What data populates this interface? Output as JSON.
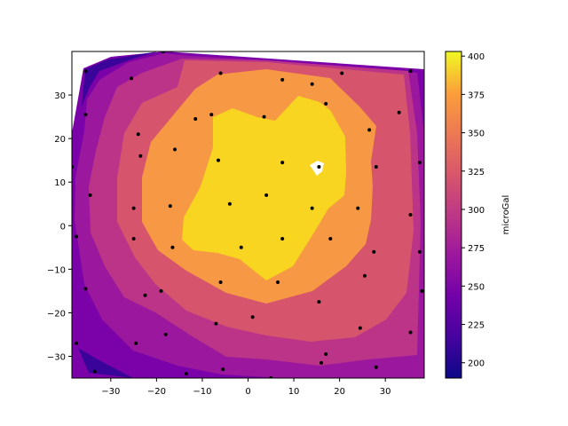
{
  "chart_data": {
    "type": "contour",
    "colormap": "plasma",
    "xlim": [
      -38.5,
      38.5
    ],
    "ylim": [
      -35,
      40
    ],
    "x_ticks": [
      -30,
      -20,
      -10,
      0,
      10,
      20,
      30
    ],
    "y_ticks": [
      -30,
      -20,
      -10,
      0,
      10,
      20,
      30
    ],
    "colorbar": {
      "label": "microGal",
      "range": [
        190,
        403
      ],
      "ticks": [
        200,
        225,
        250,
        275,
        300,
        325,
        350,
        375,
        400
      ]
    },
    "contour_levels": [
      190,
      215,
      240,
      265,
      290,
      315,
      340,
      365,
      390
    ],
    "points": [
      [
        -35.5,
        35.5
      ],
      [
        -25.5,
        33.8
      ],
      [
        -18.5,
        40
      ],
      [
        -6,
        35
      ],
      [
        7.5,
        33.5
      ],
      [
        14,
        32.5
      ],
      [
        20.5,
        35
      ],
      [
        35.5,
        35.5
      ],
      [
        -35.5,
        25.5
      ],
      [
        -24,
        21
      ],
      [
        -11.5,
        24.5
      ],
      [
        -8,
        25.5
      ],
      [
        3.5,
        25
      ],
      [
        17,
        28
      ],
      [
        26.5,
        22
      ],
      [
        33,
        26
      ],
      [
        -23.5,
        16
      ],
      [
        -16,
        17.5
      ],
      [
        -6.5,
        15
      ],
      [
        7.5,
        14.5
      ],
      [
        15.5,
        13.5
      ],
      [
        28,
        13.5
      ],
      [
        37.5,
        14.5
      ],
      [
        -38.5,
        13.5
      ],
      [
        -34.5,
        7
      ],
      [
        -25,
        4
      ],
      [
        -17,
        4.5
      ],
      [
        -4,
        5
      ],
      [
        4,
        7
      ],
      [
        14,
        4
      ],
      [
        24,
        4
      ],
      [
        35.5,
        2.5
      ],
      [
        -37.5,
        -2.5
      ],
      [
        -25,
        -3
      ],
      [
        -16.5,
        -5
      ],
      [
        -1.5,
        -5
      ],
      [
        7.5,
        -3
      ],
      [
        18,
        -3
      ],
      [
        27.5,
        -6
      ],
      [
        37.5,
        -6
      ],
      [
        -35.5,
        -14.5
      ],
      [
        -19,
        -15
      ],
      [
        -6,
        -13
      ],
      [
        6.5,
        -13
      ],
      [
        25.5,
        -11.5
      ],
      [
        38,
        -15
      ],
      [
        -22.5,
        -16
      ],
      [
        -7,
        -22.5
      ],
      [
        1,
        -21
      ],
      [
        15.5,
        -17.5
      ],
      [
        24.5,
        -23.5
      ],
      [
        35.5,
        -24.5
      ],
      [
        -37.5,
        -27
      ],
      [
        -24.5,
        -27
      ],
      [
        -18,
        -25
      ],
      [
        17,
        -29.5
      ],
      [
        16,
        -31.5
      ],
      [
        -5.5,
        -33
      ],
      [
        -13.5,
        -34
      ],
      [
        -33.5,
        -33.5
      ],
      [
        28,
        -32.5
      ],
      [
        5,
        -35
      ]
    ],
    "white_hole": [
      15.5,
      13.5
    ]
  }
}
